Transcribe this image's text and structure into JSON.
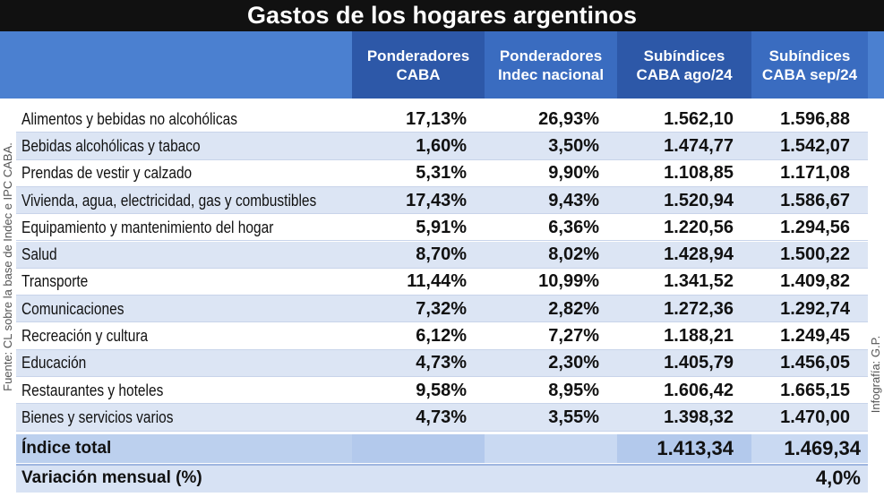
{
  "header": {
    "title": "Gastos de los hogares argentinos"
  },
  "table": {
    "columns": [
      [
        "Ponderadores",
        "CABA"
      ],
      [
        "Ponderadores",
        "Indec nacional"
      ],
      [
        "Subíndices",
        "CABA ago/24"
      ],
      [
        "Subíndices",
        "CABA sep/24"
      ]
    ],
    "rows": [
      [
        "Alimentos y bebidas no alcohólicas",
        "17,13%",
        "26,93%",
        "1.562,10",
        "1.596,88"
      ],
      [
        "Bebidas alcohólicas y tabaco",
        "1,60%",
        "3,50%",
        "1.474,77",
        "1.542,07"
      ],
      [
        "Prendas de vestir y calzado",
        "5,31%",
        "9,90%",
        "1.108,85",
        "1.171,08"
      ],
      [
        "Vivienda, agua, electricidad, gas y combustibles",
        "17,43%",
        "9,43%",
        "1.520,94",
        "1.586,67"
      ],
      [
        "Equipamiento y mantenimiento del hogar",
        "5,91%",
        "6,36%",
        "1.220,56",
        "1.294,56"
      ],
      [
        "Salud",
        "8,70%",
        "8,02%",
        "1.428,94",
        "1.500,22"
      ],
      [
        "Transporte",
        "11,44%",
        "10,99%",
        "1.341,52",
        "1.409,82"
      ],
      [
        "Comunicaciones",
        "7,32%",
        "2,82%",
        "1.272,36",
        "1.292,74"
      ],
      [
        "Recreación y cultura",
        "6,12%",
        "7,27%",
        "1.188,21",
        "1.249,45"
      ],
      [
        "Educación",
        "4,73%",
        "2,30%",
        "1.405,79",
        "1.456,05"
      ],
      [
        "Restaurantes y hoteles",
        "9,58%",
        "8,95%",
        "1.606,42",
        "1.665,15"
      ],
      [
        "Bienes y servicios varios",
        "4,73%",
        "3,55%",
        "1.398,32",
        "1.470,00"
      ]
    ],
    "total": {
      "label": "Índice total",
      "ago": "1.413,34",
      "sep": "1.469,34"
    },
    "variation": {
      "label": "Variación mensual (%)",
      "value": "4,0%"
    }
  },
  "source": "Fuente: CL sobre la base de Indec e IPC CABA.",
  "credit": "Infografía: G.P."
}
